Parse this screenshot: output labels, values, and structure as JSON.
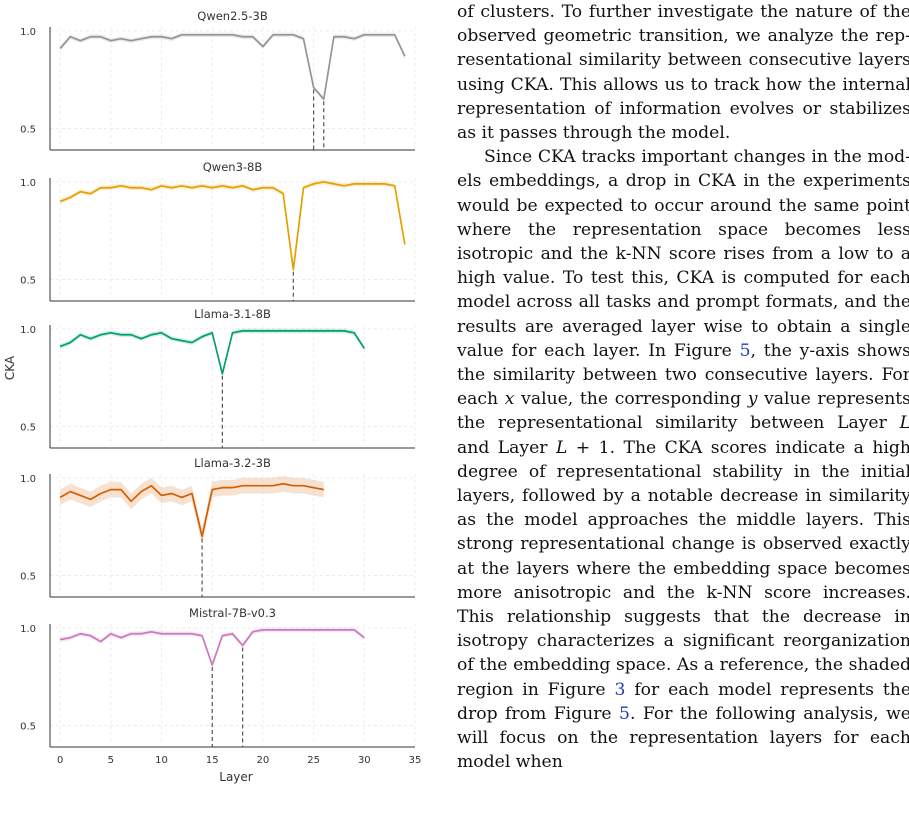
{
  "figure": {
    "ylabel": "CKA",
    "xlabel": "Layer",
    "x_ticks": [
      0,
      5,
      10,
      15,
      20,
      25,
      30,
      35
    ],
    "y_ticks": [
      "0.5",
      "1.0"
    ]
  },
  "chart_data": [
    {
      "type": "line",
      "title": "Qwen2.5-3B",
      "color": "#949494",
      "band": 0.012,
      "xlim": [
        -1,
        35
      ],
      "ylim": [
        0.4,
        1.02
      ],
      "x": [
        0,
        1,
        2,
        3,
        4,
        5,
        6,
        7,
        8,
        9,
        10,
        11,
        12,
        13,
        14,
        15,
        16,
        17,
        18,
        19,
        20,
        21,
        22,
        23,
        24,
        25,
        26,
        27,
        28,
        29,
        30,
        31,
        32,
        33,
        34
      ],
      "values": [
        0.91,
        0.97,
        0.95,
        0.97,
        0.97,
        0.95,
        0.96,
        0.95,
        0.96,
        0.97,
        0.97,
        0.96,
        0.98,
        0.98,
        0.98,
        0.98,
        0.98,
        0.98,
        0.97,
        0.97,
        0.92,
        0.98,
        0.98,
        0.98,
        0.96,
        0.71,
        0.65,
        0.97,
        0.97,
        0.96,
        0.98,
        0.98,
        0.98,
        0.98,
        0.87
      ],
      "vlines": [
        25,
        26
      ]
    },
    {
      "type": "line",
      "title": "Qwen3-8B",
      "color": "#e69f00",
      "band": 0.012,
      "xlim": [
        -1,
        35
      ],
      "ylim": [
        0.4,
        1.02
      ],
      "x": [
        0,
        1,
        2,
        3,
        4,
        5,
        6,
        7,
        8,
        9,
        10,
        11,
        12,
        13,
        14,
        15,
        16,
        17,
        18,
        19,
        20,
        21,
        22,
        23,
        24,
        25,
        26,
        27,
        28,
        29,
        30,
        31,
        32,
        33,
        34
      ],
      "values": [
        0.9,
        0.92,
        0.95,
        0.94,
        0.97,
        0.97,
        0.98,
        0.97,
        0.97,
        0.96,
        0.98,
        0.97,
        0.98,
        0.97,
        0.98,
        0.97,
        0.98,
        0.97,
        0.98,
        0.96,
        0.97,
        0.97,
        0.94,
        0.55,
        0.97,
        0.99,
        1.0,
        0.99,
        0.98,
        0.99,
        0.99,
        0.99,
        0.99,
        0.98,
        0.68
      ],
      "vlines": [
        23
      ]
    },
    {
      "type": "line",
      "title": "Llama-3.1-8B",
      "color": "#029e73",
      "band": 0.012,
      "xlim": [
        -1,
        35
      ],
      "ylim": [
        0.4,
        1.02
      ],
      "x": [
        0,
        1,
        2,
        3,
        4,
        5,
        6,
        7,
        8,
        9,
        10,
        11,
        12,
        13,
        14,
        15,
        16,
        17,
        18,
        19,
        20,
        21,
        22,
        23,
        24,
        25,
        26,
        27,
        28,
        29,
        30
      ],
      "values": [
        0.91,
        0.93,
        0.97,
        0.95,
        0.97,
        0.98,
        0.97,
        0.97,
        0.95,
        0.97,
        0.98,
        0.95,
        0.94,
        0.93,
        0.96,
        0.98,
        0.77,
        0.98,
        0.99,
        0.99,
        0.99,
        0.99,
        0.99,
        0.99,
        0.99,
        0.99,
        0.99,
        0.99,
        0.99,
        0.98,
        0.9
      ],
      "vlines": [
        16
      ]
    },
    {
      "type": "line",
      "title": "Llama-3.2-3B",
      "color": "#d55e00",
      "band": 0.04,
      "xlim": [
        -1,
        35
      ],
      "ylim": [
        0.4,
        1.02
      ],
      "x": [
        0,
        1,
        2,
        3,
        4,
        5,
        6,
        7,
        8,
        9,
        10,
        11,
        12,
        13,
        14,
        15,
        16,
        17,
        18,
        19,
        20,
        21,
        22,
        23,
        24,
        25,
        26
      ],
      "values": [
        0.9,
        0.93,
        0.91,
        0.89,
        0.92,
        0.94,
        0.94,
        0.88,
        0.93,
        0.96,
        0.91,
        0.92,
        0.9,
        0.92,
        0.7,
        0.94,
        0.95,
        0.95,
        0.96,
        0.96,
        0.96,
        0.96,
        0.97,
        0.96,
        0.96,
        0.95,
        0.94
      ],
      "vlines": [
        14
      ]
    },
    {
      "type": "line",
      "title": "Mistral-7B-v0.3",
      "color": "#cc78bc",
      "band": 0.012,
      "xlim": [
        -1,
        35
      ],
      "ylim": [
        0.4,
        1.02
      ],
      "x": [
        0,
        1,
        2,
        3,
        4,
        5,
        6,
        7,
        8,
        9,
        10,
        11,
        12,
        13,
        14,
        15,
        16,
        17,
        18,
        19,
        20,
        21,
        22,
        23,
        24,
        25,
        26,
        27,
        28,
        29,
        30
      ],
      "values": [
        0.94,
        0.95,
        0.97,
        0.96,
        0.93,
        0.97,
        0.95,
        0.97,
        0.97,
        0.98,
        0.97,
        0.97,
        0.97,
        0.97,
        0.96,
        0.81,
        0.96,
        0.97,
        0.91,
        0.98,
        0.99,
        0.99,
        0.99,
        0.99,
        0.99,
        0.99,
        0.99,
        0.99,
        0.99,
        0.99,
        0.95
      ],
      "vlines": [
        15,
        18
      ]
    }
  ],
  "text": {
    "p1": "of clusters. To further investigate the nature of the observed geometric transition, we analyze the rep­resentational similarity between consecutive layers using CKA. This allows us to track how the internal representation of information evolves or stabilizes as it passes through the model.",
    "p2_a": "Since CKA tracks important changes in the mod­els embeddings, a drop in CKA in the experi­ments would be expected to occur around the same point where the representation space becomes less isotropic and the k-NN score rises from a low to a high value. To test this, CKA is computed for each model across all tasks and prompt formats, and the results are averaged layer wise to obtain a single value for each layer. In Figure",
    "fig5": "5",
    "p2_b": ", the y-axis shows the similarity between two consecutive layers. For each",
    "x": "x",
    "p2_c": "value, the corresponding",
    "y": "y",
    "p2_d": "value represents the representational similarity between Layer",
    "L": "L",
    "p2_e": "and Layer",
    "L1": "L",
    "plus1": " + 1",
    "p2_f": ". The CKA scores indicate a high de­gree of representational stability in the initial layers, followed by a notable decrease in similarity as the model approaches the middle layers. This strong representational change is observed exactly at the layers where the embedding space becomes more anisotropic and the k-NN score increases. This relationship suggests that the decrease in isotropy characterizes a significant reorganization of the em­bedding space. As a reference, the shaded region in Figure",
    "fig3": "3",
    "p2_g": "for each model represents the drop from Figure",
    "fig5b": "5",
    "p2_h": ". For the following analysis, we will focus on the representation layers for each model when"
  }
}
